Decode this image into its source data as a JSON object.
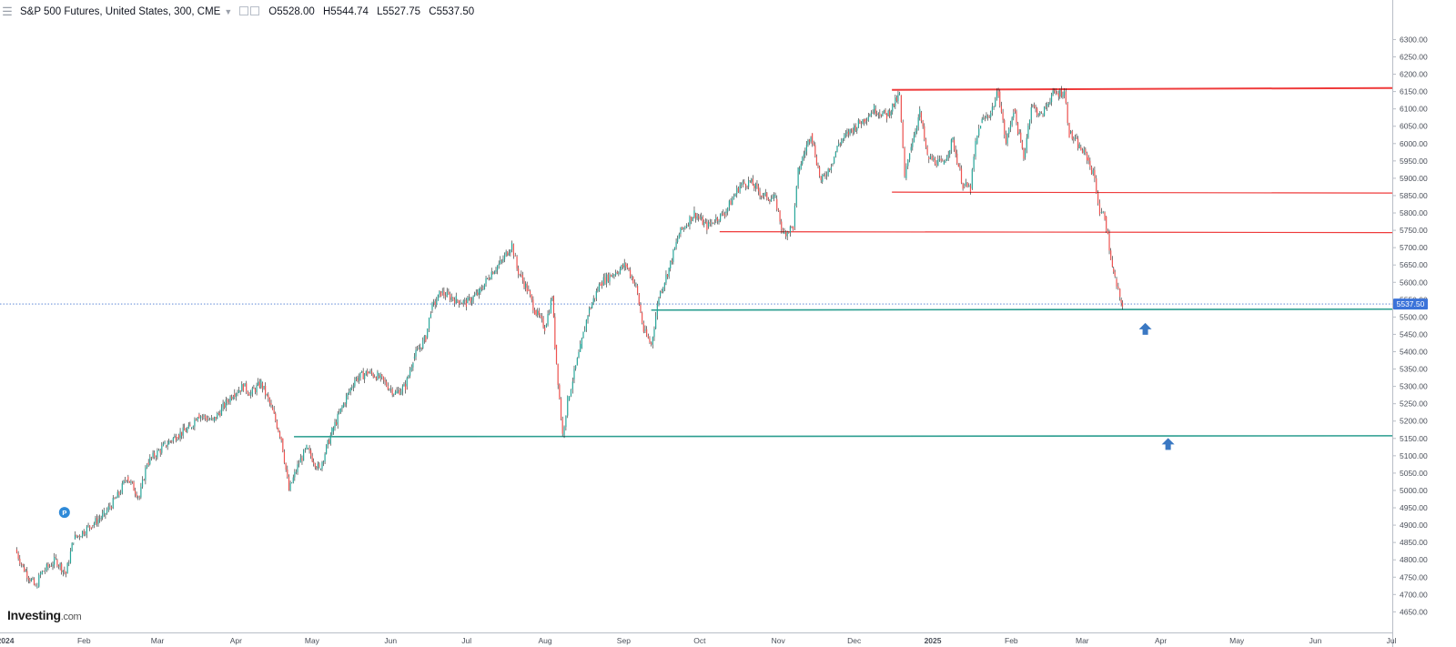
{
  "header": {
    "menu_icon": "menu-icon",
    "title": "S&P 500 Futures, United States, 300, CME",
    "ohlc": {
      "o_label": "O",
      "o": "5528.00",
      "h_label": "H",
      "h": "5544.74",
      "l_label": "L",
      "l": "5527.75",
      "c_label": "C",
      "c": "5537.50"
    }
  },
  "logo": {
    "name": "Investing",
    "suffix": ".com"
  },
  "colors": {
    "up": "#26a69a",
    "down": "#ef5350",
    "wick": "#1d1d1d",
    "resistance": "#ef3b3b",
    "support": "#2a9d8f",
    "arrow": "#3a78c3",
    "price_tag": "#3b73d9"
  },
  "chart_data": {
    "type": "line",
    "title": "S&P 500 Futures, United States, 300, CME",
    "x_ticks": [
      "2024",
      "Feb",
      "Mar",
      "Apr",
      "May",
      "Jun",
      "Jul",
      "Aug",
      "Sep",
      "Oct",
      "Nov",
      "Dec",
      "2025",
      "Feb",
      "Mar",
      "Apr",
      "May",
      "Jun",
      "Jul"
    ],
    "y_ticks": [
      "4650.00",
      "4700.00",
      "4750.00",
      "4800.00",
      "4850.00",
      "4900.00",
      "4950.00",
      "5000.00",
      "5050.00",
      "5100.00",
      "5150.00",
      "5200.00",
      "5250.00",
      "5300.00",
      "5350.00",
      "5400.00",
      "5450.00",
      "5500.00",
      "5550.00",
      "5600.00",
      "5650.00",
      "5700.00",
      "5750.00",
      "5800.00",
      "5850.00",
      "5900.00",
      "5950.00",
      "6000.00",
      "6050.00",
      "6100.00",
      "6150.00",
      "6200.00",
      "6250.00",
      "6300.00"
    ],
    "ylim": [
      4630,
      6330
    ],
    "series": [
      {
        "values": [
          [
            "2024-01-02",
            4830
          ],
          [
            "2024-01-05",
            4780
          ],
          [
            "2024-01-10",
            4720
          ],
          [
            "2024-01-12",
            4760
          ],
          [
            "2024-01-18",
            4800
          ],
          [
            "2024-01-22",
            4760
          ],
          [
            "2024-01-25",
            4860
          ],
          [
            "2024-02-01",
            4900
          ],
          [
            "2024-02-06",
            4930
          ],
          [
            "2024-02-12",
            4990
          ],
          [
            "2024-02-15",
            5040
          ],
          [
            "2024-02-20",
            4980
          ],
          [
            "2024-02-23",
            5080
          ],
          [
            "2024-03-01",
            5130
          ],
          [
            "2024-03-06",
            5160
          ],
          [
            "2024-03-11",
            5180
          ],
          [
            "2024-03-14",
            5220
          ],
          [
            "2024-03-20",
            5200
          ],
          [
            "2024-03-28",
            5280
          ],
          [
            "2024-04-01",
            5300
          ],
          [
            "2024-04-04",
            5280
          ],
          [
            "2024-04-08",
            5310
          ],
          [
            "2024-04-12",
            5240
          ],
          [
            "2024-04-16",
            5150
          ],
          [
            "2024-04-19",
            5000
          ],
          [
            "2024-04-23",
            5080
          ],
          [
            "2024-04-26",
            5120
          ],
          [
            "2024-05-01",
            5060
          ],
          [
            "2024-05-06",
            5170
          ],
          [
            "2024-05-10",
            5240
          ],
          [
            "2024-05-15",
            5320
          ],
          [
            "2024-05-20",
            5340
          ],
          [
            "2024-05-24",
            5330
          ],
          [
            "2024-05-31",
            5280
          ],
          [
            "2024-06-04",
            5300
          ],
          [
            "2024-06-07",
            5380
          ],
          [
            "2024-06-12",
            5440
          ],
          [
            "2024-06-14",
            5520
          ],
          [
            "2024-06-18",
            5570
          ],
          [
            "2024-06-24",
            5550
          ],
          [
            "2024-06-28",
            5540
          ],
          [
            "2024-07-03",
            5570
          ],
          [
            "2024-07-08",
            5630
          ],
          [
            "2024-07-12",
            5660
          ],
          [
            "2024-07-16",
            5710
          ],
          [
            "2024-07-18",
            5640
          ],
          [
            "2024-07-22",
            5580
          ],
          [
            "2024-07-25",
            5520
          ],
          [
            "2024-07-29",
            5470
          ],
          [
            "2024-08-01",
            5560
          ],
          [
            "2024-08-02",
            5420
          ],
          [
            "2024-08-05",
            5160
          ],
          [
            "2024-08-07",
            5260
          ],
          [
            "2024-08-09",
            5320
          ],
          [
            "2024-08-12",
            5410
          ],
          [
            "2024-08-15",
            5510
          ],
          [
            "2024-08-20",
            5600
          ],
          [
            "2024-08-26",
            5630
          ],
          [
            "2024-08-30",
            5650
          ],
          [
            "2024-09-03",
            5590
          ],
          [
            "2024-09-06",
            5460
          ],
          [
            "2024-09-09",
            5420
          ],
          [
            "2024-09-12",
            5560
          ],
          [
            "2024-09-16",
            5640
          ],
          [
            "2024-09-20",
            5740
          ],
          [
            "2024-09-26",
            5800
          ],
          [
            "2024-10-01",
            5760
          ],
          [
            "2024-10-04",
            5780
          ],
          [
            "2024-10-08",
            5800
          ],
          [
            "2024-10-14",
            5880
          ],
          [
            "2024-10-18",
            5890
          ],
          [
            "2024-10-23",
            5850
          ],
          [
            "2024-10-28",
            5840
          ],
          [
            "2024-10-31",
            5740
          ],
          [
            "2024-11-04",
            5760
          ],
          [
            "2024-11-06",
            5920
          ],
          [
            "2024-11-11",
            6030
          ],
          [
            "2024-11-15",
            5890
          ],
          [
            "2024-11-19",
            5940
          ],
          [
            "2024-11-22",
            6000
          ],
          [
            "2024-11-27",
            6040
          ],
          [
            "2024-12-02",
            6070
          ],
          [
            "2024-12-06",
            6100
          ],
          [
            "2024-12-11",
            6080
          ],
          [
            "2024-12-16",
            6140
          ],
          [
            "2024-12-18",
            5900
          ],
          [
            "2024-12-20",
            5980
          ],
          [
            "2024-12-24",
            6090
          ],
          [
            "2024-12-27",
            5960
          ],
          [
            "2025-01-02",
            5940
          ],
          [
            "2025-01-06",
            6010
          ],
          [
            "2025-01-10",
            5880
          ],
          [
            "2025-01-13",
            5870
          ],
          [
            "2025-01-15",
            6000
          ],
          [
            "2025-01-17",
            6060
          ],
          [
            "2025-01-21",
            6090
          ],
          [
            "2025-01-24",
            6150
          ],
          [
            "2025-01-27",
            6000
          ],
          [
            "2025-01-30",
            6100
          ],
          [
            "2025-02-03",
            5960
          ],
          [
            "2025-02-06",
            6110
          ],
          [
            "2025-02-10",
            6080
          ],
          [
            "2025-02-14",
            6140
          ],
          [
            "2025-02-19",
            6150
          ],
          [
            "2025-02-21",
            6030
          ],
          [
            "2025-02-25",
            5990
          ],
          [
            "2025-02-28",
            5960
          ],
          [
            "2025-03-03",
            5900
          ],
          [
            "2025-03-05",
            5800
          ],
          [
            "2025-03-07",
            5790
          ],
          [
            "2025-03-10",
            5640
          ],
          [
            "2025-03-11",
            5610
          ],
          [
            "2025-03-13",
            5550
          ],
          [
            "2025-03-14",
            5537.5
          ]
        ]
      }
    ],
    "current_price": "5537.50",
    "resistance_levels": [
      {
        "value": 6155,
        "from": "2024-12-13"
      },
      {
        "value": 5860,
        "from": "2024-12-13"
      },
      {
        "value": 5746,
        "from": "2024-10-06"
      }
    ],
    "support_levels": [
      {
        "value": 5520,
        "from": "2024-09-09"
      },
      {
        "value": 5155,
        "from": "2024-04-21"
      }
    ],
    "event_marker": {
      "date": "2024-01-25",
      "value": 4900,
      "label": "P"
    },
    "arrows": [
      {
        "date": "2025-03-23",
        "value": 5462,
        "direction": "up"
      },
      {
        "date": "2025-04-01",
        "value": 5130,
        "direction": "up"
      }
    ],
    "grid": false
  }
}
